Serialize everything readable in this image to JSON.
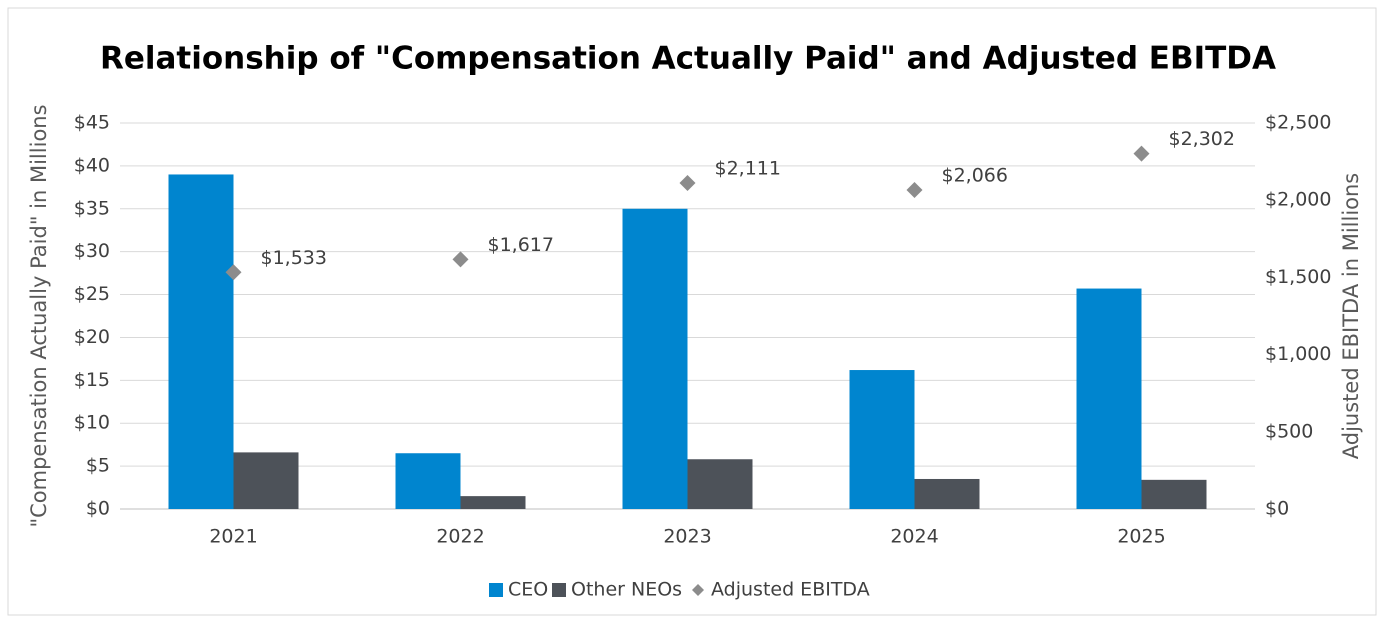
{
  "chart_data": {
    "type": "bar",
    "title": "Relationship of \"Compensation Actually Paid\" and Adjusted EBITDA",
    "ylabel": "\"Compensation Actually Paid\" in Millions",
    "y2label": "Adjusted EBITDA in Millions",
    "categories": [
      "2021",
      "2022",
      "2023",
      "2024",
      "2025"
    ],
    "series": [
      {
        "name": "CEO",
        "color": "#0085cf",
        "values": [
          39.0,
          6.5,
          35.0,
          16.2,
          25.7
        ]
      },
      {
        "name": "Other NEOs",
        "color": "#4d5259",
        "values": [
          6.6,
          1.5,
          5.8,
          3.5,
          3.4
        ]
      },
      {
        "name": "Adjusted EBITDA",
        "color": "#8c8c8c",
        "type": "scatter",
        "axis": "y2",
        "values": [
          1533,
          1617,
          2111,
          2066,
          2302
        ],
        "value_labels": [
          "$1,533",
          "$1,617",
          "$2,111",
          "$2,066",
          "$2,302"
        ]
      }
    ],
    "ylim": [
      0,
      45
    ],
    "yticks": [
      {
        "value": 0,
        "label": "$0"
      },
      {
        "value": 5,
        "label": "$5"
      },
      {
        "value": 10,
        "label": "$10"
      },
      {
        "value": 15,
        "label": "$15"
      },
      {
        "value": 20,
        "label": "$20"
      },
      {
        "value": 25,
        "label": "$25"
      },
      {
        "value": 30,
        "label": "$30"
      },
      {
        "value": 35,
        "label": "$35"
      },
      {
        "value": 40,
        "label": "$40"
      },
      {
        "value": 45,
        "label": "$45"
      }
    ],
    "y2lim": [
      0,
      2500
    ],
    "y2ticks": [
      {
        "value": 0,
        "label": "$0"
      },
      {
        "value": 500,
        "label": "$500"
      },
      {
        "value": 1000,
        "label": "$1,000"
      },
      {
        "value": 1500,
        "label": "$1,500"
      },
      {
        "value": 2000,
        "label": "$2,000"
      },
      {
        "value": 2500,
        "label": "$2,500"
      }
    ],
    "grid": true,
    "legend": "bottom"
  }
}
